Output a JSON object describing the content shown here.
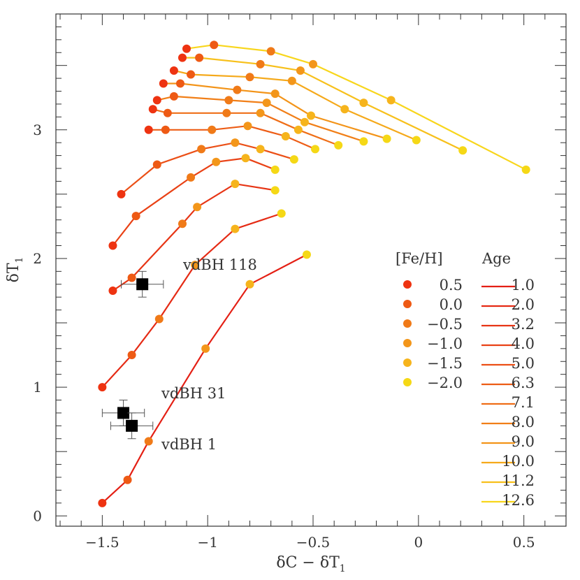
{
  "chart_data": {
    "type": "line",
    "xlabel": "δC − δT1",
    "ylabel": "δT1",
    "xlim": [
      -1.72,
      0.7
    ],
    "ylim": [
      -0.08,
      3.9
    ],
    "x_ticks_major": [
      -1.5,
      -1,
      -0.5,
      0,
      0.5
    ],
    "x_tick_labels": [
      "−1.5",
      "−1",
      "−0.5",
      "0",
      "0.5"
    ],
    "y_ticks_major": [
      0,
      1,
      2,
      3
    ],
    "y_tick_labels": [
      "0",
      "1",
      "2",
      "3"
    ],
    "grid": false,
    "metallicity_legend": {
      "title": "[Fe/H]",
      "entries": [
        {
          "label": "0.5",
          "color": "#ee3311"
        },
        {
          "label": "0.0",
          "color": "#ee5a14"
        },
        {
          "label": "−0.5",
          "color": "#f07a18"
        },
        {
          "label": "−1.0",
          "color": "#f3961a"
        },
        {
          "label": "−1.5",
          "color": "#f6b41c"
        },
        {
          "label": "−2.0",
          "color": "#f5d816"
        }
      ]
    },
    "age_legend": {
      "title": "Age",
      "placement": "right",
      "entries": [
        {
          "label": "1.0",
          "color": "#e41f14"
        },
        {
          "label": "2.0",
          "color": "#e52a14"
        },
        {
          "label": "3.2",
          "color": "#e73515"
        },
        {
          "label": "4.0",
          "color": "#e94115"
        },
        {
          "label": "5.0",
          "color": "#eb4f16"
        },
        {
          "label": "6.3",
          "color": "#ed5d16"
        },
        {
          "label": "7.1",
          "color": "#ef6e17"
        },
        {
          "label": "8.0",
          "color": "#f17f18"
        },
        {
          "label": "9.0",
          "color": "#f39419"
        },
        {
          "label": "10.0",
          "color": "#f5a91a"
        },
        {
          "label": "11.2",
          "color": "#f7c01b"
        },
        {
          "label": "12.6",
          "color": "#f8d61c"
        }
      ]
    },
    "metallicity_point_colors": [
      "#ee3311",
      "#ee5a14",
      "#f07a18",
      "#f3961a",
      "#f6b41c",
      "#f5d816"
    ],
    "series": [
      {
        "name": "1.0",
        "x": [
          -1.5,
          -1.38,
          -1.28,
          -1.01,
          -0.8,
          -0.53
        ],
        "y": [
          0.1,
          0.28,
          0.58,
          1.3,
          1.8,
          2.03
        ]
      },
      {
        "name": "2.0",
        "x": [
          -1.5,
          -1.36,
          -1.23,
          -1.06,
          -0.87,
          -0.65
        ],
        "y": [
          1.0,
          1.25,
          1.53,
          1.95,
          2.23,
          2.35
        ]
      },
      {
        "name": "3.2",
        "x": [
          -1.45,
          -1.36,
          -1.12,
          -1.05,
          -0.87,
          -0.68
        ],
        "y": [
          1.75,
          1.85,
          2.27,
          2.4,
          2.58,
          2.53
        ]
      },
      {
        "name": "4.0",
        "x": [
          -1.45,
          -1.34,
          -1.08,
          -0.96,
          -0.82,
          -0.68
        ],
        "y": [
          2.1,
          2.33,
          2.63,
          2.75,
          2.78,
          2.69
        ]
      },
      {
        "name": "5.0",
        "x": [
          -1.41,
          -1.24,
          -1.03,
          -0.87,
          -0.75,
          -0.59
        ],
        "y": [
          2.5,
          2.73,
          2.85,
          2.9,
          2.85,
          2.77
        ]
      },
      {
        "name": "6.3",
        "x": [
          -1.28,
          -1.2,
          -0.98,
          -0.81,
          -0.63,
          -0.49
        ],
        "y": [
          3.0,
          3.0,
          3.0,
          3.03,
          2.95,
          2.85
        ]
      },
      {
        "name": "7.1",
        "x": [
          -1.26,
          -1.19,
          -0.91,
          -0.75,
          -0.57,
          -0.38
        ],
        "y": [
          3.16,
          3.13,
          3.13,
          3.13,
          3.0,
          2.88
        ]
      },
      {
        "name": "8.0",
        "x": [
          -1.24,
          -1.16,
          -0.9,
          -0.72,
          -0.54,
          -0.26
        ],
        "y": [
          3.23,
          3.26,
          3.23,
          3.21,
          3.06,
          2.91
        ]
      },
      {
        "name": "9.0",
        "x": [
          -1.21,
          -1.13,
          -0.86,
          -0.68,
          -0.51,
          -0.15
        ],
        "y": [
          3.36,
          3.36,
          3.31,
          3.28,
          3.11,
          2.93
        ]
      },
      {
        "name": "10.0",
        "x": [
          -1.16,
          -1.08,
          -0.8,
          -0.6,
          -0.35,
          -0.01
        ],
        "y": [
          3.46,
          3.43,
          3.41,
          3.38,
          3.16,
          2.92
        ]
      },
      {
        "name": "11.2",
        "x": [
          -1.12,
          -1.04,
          -0.75,
          -0.56,
          -0.26,
          0.21
        ],
        "y": [
          3.56,
          3.56,
          3.51,
          3.46,
          3.21,
          2.84
        ]
      },
      {
        "name": "12.6",
        "x": [
          -1.1,
          -0.97,
          -0.7,
          -0.5,
          -0.13,
          0.51
        ],
        "y": [
          3.63,
          3.66,
          3.61,
          3.51,
          3.23,
          2.69
        ]
      }
    ],
    "clusters": [
      {
        "name": "vdBH 118",
        "x": -1.31,
        "y": 1.8,
        "xerr": 0.1,
        "yerr": 0.1
      },
      {
        "name": "vdBH 31",
        "x": -1.4,
        "y": 0.8,
        "xerr": 0.1,
        "yerr": 0.1
      },
      {
        "name": "vdBH 1",
        "x": -1.36,
        "y": 0.7,
        "xerr": 0.1,
        "yerr": 0.1
      }
    ]
  }
}
